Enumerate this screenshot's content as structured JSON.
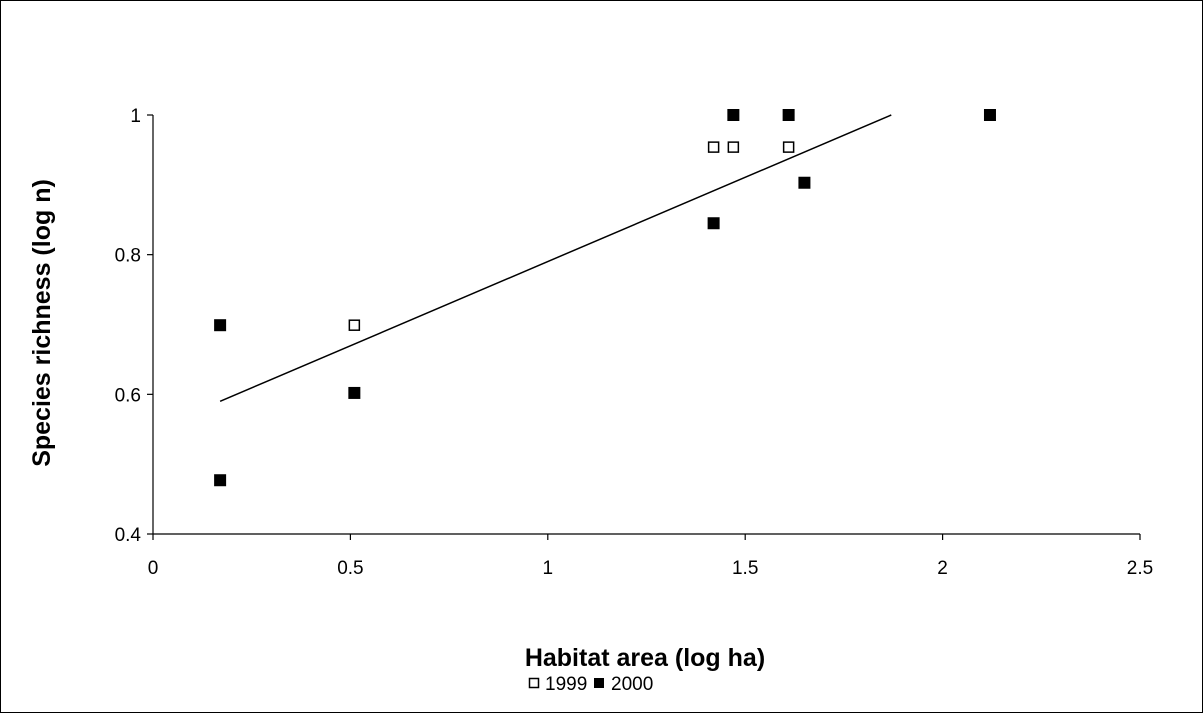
{
  "chart_data": {
    "type": "scatter",
    "title": "",
    "xlabel": "Habitat area (log ha)",
    "ylabel": "Species richness (log n)",
    "xlim": [
      0,
      2.5
    ],
    "ylim": [
      0.4,
      1.0
    ],
    "x_ticks": [
      0,
      0.5,
      1,
      1.5,
      2,
      2.5
    ],
    "x_tick_labels": [
      "0",
      "0.5",
      "1",
      "1.5",
      "2",
      "2.5"
    ],
    "y_ticks": [
      0.4,
      0.6,
      0.8,
      1.0
    ],
    "y_tick_labels": [
      "0.4",
      "0.6",
      "0.8",
      "1"
    ],
    "grid": false,
    "legend_position": "bottom",
    "series": [
      {
        "name": "1999",
        "marker": "open-square",
        "color": "#000000",
        "points": [
          [
            0.51,
            0.699
          ],
          [
            1.42,
            0.954
          ],
          [
            1.47,
            0.954
          ],
          [
            1.61,
            0.954
          ]
        ]
      },
      {
        "name": "2000",
        "marker": "filled-square",
        "color": "#000000",
        "points": [
          [
            0.17,
            0.699
          ],
          [
            0.17,
            0.477
          ],
          [
            0.51,
            0.602
          ],
          [
            1.42,
            0.845
          ],
          [
            1.47,
            1.0
          ],
          [
            1.61,
            1.0
          ],
          [
            1.65,
            0.903
          ],
          [
            2.12,
            1.0
          ]
        ]
      }
    ],
    "trendline": {
      "x": [
        0.17,
        1.87
      ],
      "y": [
        0.59,
        1.0
      ]
    }
  }
}
